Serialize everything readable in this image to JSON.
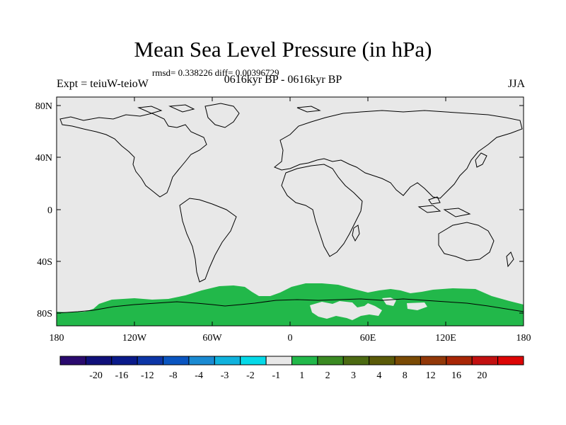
{
  "title": "Mean Sea Level Pressure (in hPa)",
  "stats": "rmsd= 0.338226 diff= 0.00396729",
  "left_label": "Expt = teiuW-teioW",
  "center_label": "0616kyr BP - 0616kyr BP",
  "right_label": "JJA",
  "lat_labels": [
    "80N",
    "40N",
    "0",
    "40S",
    "80S"
  ],
  "lon_labels": [
    "180",
    "120W",
    "60W",
    "0",
    "60E",
    "120E",
    "180"
  ],
  "colorbar": {
    "colors": [
      "#2a0a6e",
      "#10107a",
      "#0a1a8a",
      "#0c35a6",
      "#0a55c0",
      "#1a8ad2",
      "#10b2dd",
      "#05d9e8",
      "#e8e8e8",
      "#22b84a",
      "#3a8a22",
      "#4c6a12",
      "#5a5a08",
      "#7a4a04",
      "#923808",
      "#a82606",
      "#c21010",
      "#dd0606"
    ],
    "labels": [
      "-20",
      "-16",
      "-12",
      "-8",
      "-4",
      "-3",
      "-2",
      "-1",
      "1",
      "2",
      "3",
      "4",
      "8",
      "12",
      "16",
      "20"
    ]
  },
  "map": {
    "background_color": "#e8e8e8",
    "anomaly_color": "#22b84a",
    "lon_range": [
      -180,
      180
    ],
    "lat_range": [
      -90,
      90
    ]
  }
}
